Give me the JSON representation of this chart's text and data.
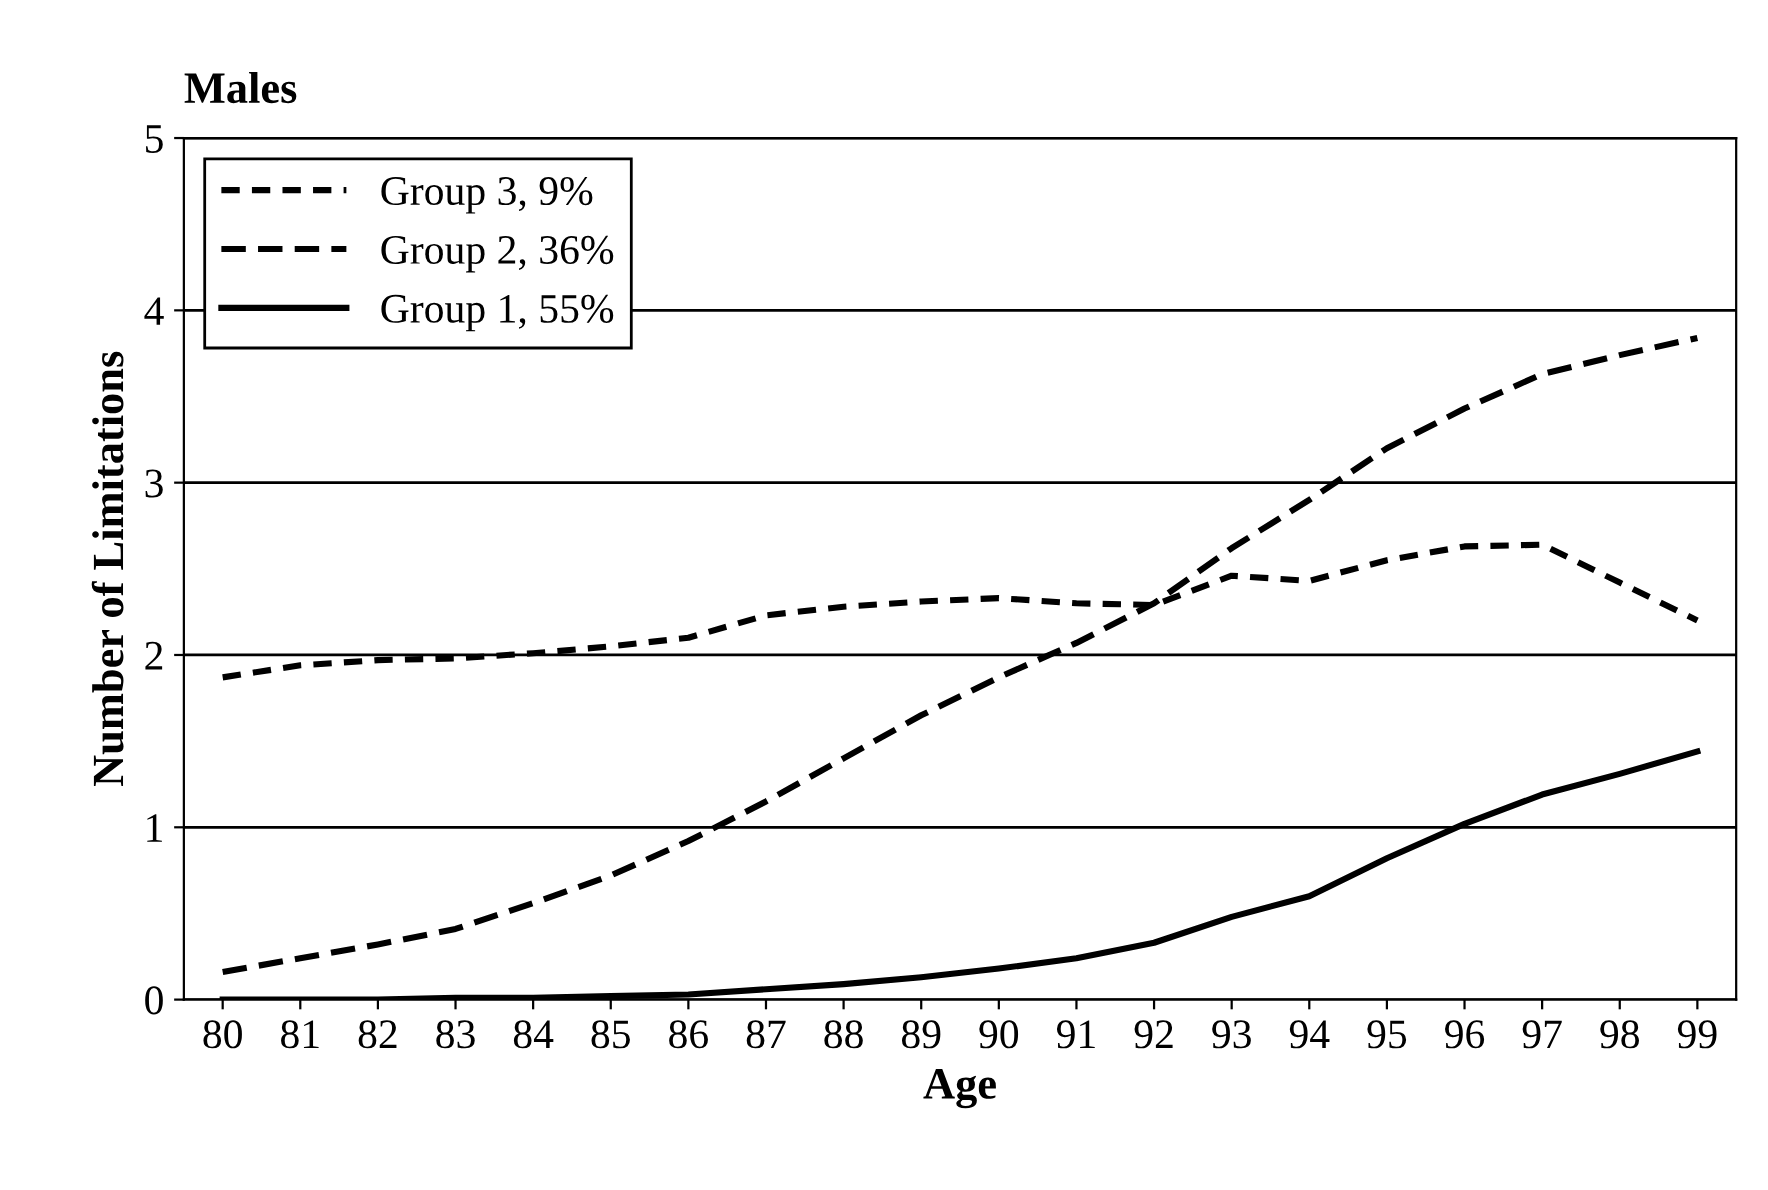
{
  "chart_data": {
    "type": "line",
    "title": "Males",
    "xlabel": "Age",
    "ylabel": "Number of Limitations",
    "categories": [
      "80",
      "81",
      "82",
      "83",
      "84",
      "85",
      "86",
      "87",
      "88",
      "89",
      "90",
      "91",
      "92",
      "93",
      "94",
      "95",
      "96",
      "97",
      "98",
      "99"
    ],
    "ylim": [
      0,
      5
    ],
    "yticks": [
      0,
      1,
      2,
      3,
      4,
      5
    ],
    "grid": "y",
    "legend": "top left",
    "marker": "none",
    "series": [
      {
        "name": "Group 3, 9%",
        "color": "#000000",
        "line_style": "dotted",
        "values": [
          1.87,
          1.94,
          1.97,
          1.98,
          2.01,
          2.05,
          2.1,
          2.23,
          2.28,
          2.31,
          2.33,
          2.3,
          2.29,
          2.46,
          2.43,
          2.55,
          2.63,
          2.64,
          2.42,
          2.2
        ]
      },
      {
        "name": "Group 2, 36%",
        "color": "#000000",
        "line_style": "dashed",
        "values": [
          0.16,
          0.24,
          0.32,
          0.41,
          0.56,
          0.72,
          0.92,
          1.15,
          1.4,
          1.65,
          1.87,
          2.07,
          2.3,
          2.62,
          2.9,
          3.2,
          3.43,
          3.63,
          3.74,
          3.84
        ]
      },
      {
        "name": "Group 1, 55%",
        "color": "#000000",
        "line_style": "solid",
        "values": [
          0,
          0,
          0,
          0.01,
          0.01,
          0.02,
          0.03,
          0.06,
          0.09,
          0.13,
          0.18,
          0.24,
          0.33,
          0.48,
          0.6,
          0.82,
          1.02,
          1.19,
          1.31,
          1.44
        ]
      }
    ]
  }
}
